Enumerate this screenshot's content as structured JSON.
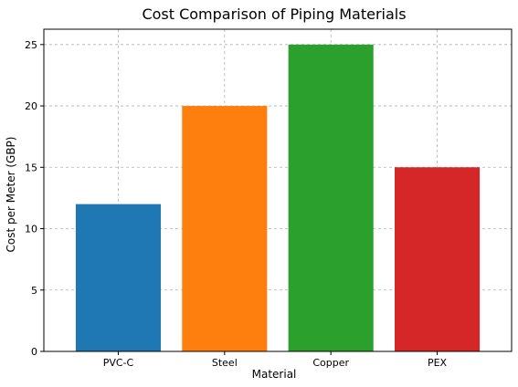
{
  "chart_data": {
    "type": "bar",
    "title": "Cost Comparison of Piping Materials",
    "xlabel": "Material",
    "ylabel": "Cost per Meter (GBP)",
    "categories": [
      "PVC-C",
      "Steel",
      "Copper",
      "PEX"
    ],
    "values": [
      12,
      20,
      25,
      15
    ],
    "colors": [
      "#1f77b4",
      "#ff7f0e",
      "#2ca02c",
      "#d62728"
    ],
    "ylim": [
      0,
      26.25
    ],
    "yticks": [
      0,
      5,
      10,
      15,
      20,
      25
    ],
    "grid": true
  }
}
